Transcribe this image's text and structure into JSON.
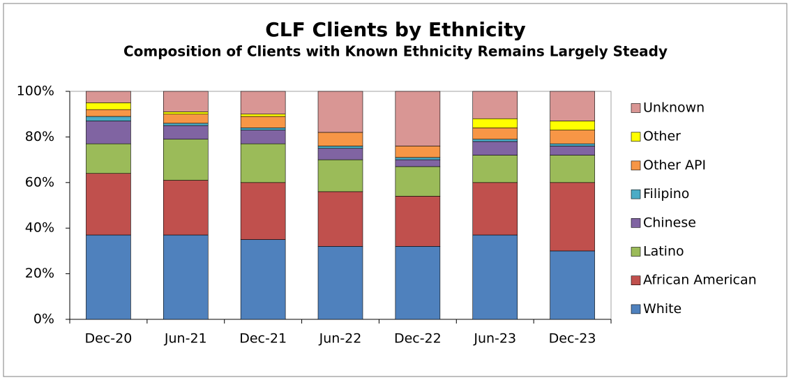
{
  "chart_data": {
    "type": "stacked_bar",
    "title": "CLF Clients by Ethnicity",
    "subtitle": "Composition of Clients with Known Ethnicity Remains Largely Steady",
    "categories": [
      "Dec-20",
      "Jun-21",
      "Dec-21",
      "Jun-22",
      "Dec-22",
      "Jun-23",
      "Dec-23"
    ],
    "series": [
      {
        "name": "White",
        "color": "#4f81bd",
        "values": [
          37,
          37,
          35,
          32,
          32,
          37,
          30
        ]
      },
      {
        "name": "African American",
        "color": "#c0504d",
        "values": [
          27,
          24,
          25,
          24,
          22,
          23,
          30
        ]
      },
      {
        "name": "Latino",
        "color": "#9bbb59",
        "values": [
          13,
          18,
          17,
          14,
          13,
          12,
          12
        ]
      },
      {
        "name": "Chinese",
        "color": "#8064a2",
        "values": [
          10,
          6,
          6,
          5,
          3,
          6,
          4
        ]
      },
      {
        "name": "Filipino",
        "color": "#4bacc6",
        "values": [
          2,
          1,
          1,
          1,
          1,
          1,
          1
        ]
      },
      {
        "name": "Other API",
        "color": "#f79646",
        "values": [
          3,
          4,
          5,
          6,
          5,
          5,
          6
        ]
      },
      {
        "name": "Other",
        "color": "#ffff00",
        "values": [
          3,
          1,
          1,
          0,
          0,
          4,
          4
        ]
      },
      {
        "name": "Unknown",
        "color": "#d99694",
        "values": [
          5,
          9,
          10,
          18,
          24,
          12,
          13
        ]
      }
    ],
    "ylim": [
      0,
      100
    ],
    "yticks": [
      {
        "value": 0,
        "label": "0%"
      },
      {
        "value": 20,
        "label": "20%"
      },
      {
        "value": 40,
        "label": "40%"
      },
      {
        "value": 60,
        "label": "60%"
      },
      {
        "value": 80,
        "label": "80%"
      },
      {
        "value": 100,
        "label": "100%"
      }
    ],
    "legend": "right"
  }
}
